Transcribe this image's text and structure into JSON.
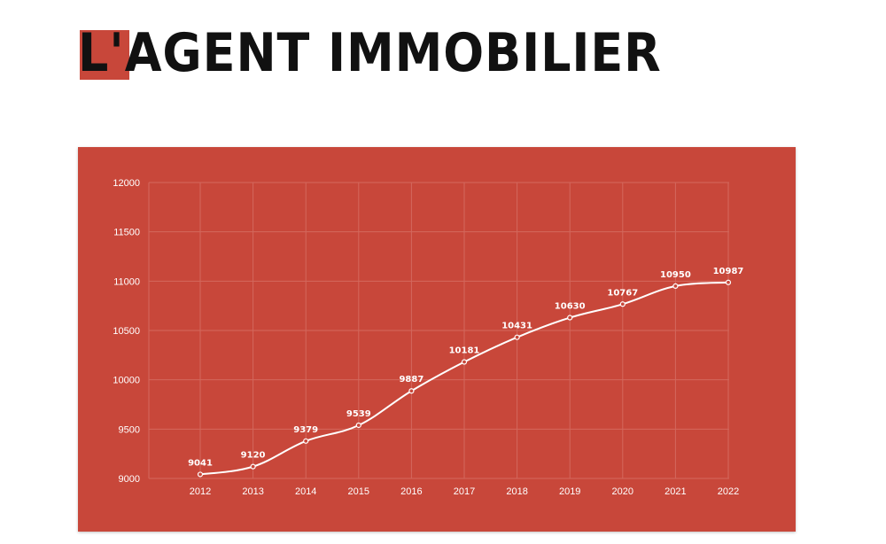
{
  "header": {
    "logo_text": "L'AGENT IMMOBILIER"
  },
  "colors": {
    "background": "#c8473a",
    "line": "#ffffff",
    "grid": "#d3685d"
  },
  "chart_data": {
    "type": "line",
    "title": "",
    "xlabel": "",
    "ylabel": "",
    "categories": [
      "2012",
      "2013",
      "2014",
      "2015",
      "2016",
      "2017",
      "2018",
      "2019",
      "2020",
      "2021",
      "2022"
    ],
    "values": [
      9041,
      9120,
      9379,
      9539,
      9887,
      10181,
      10431,
      10630,
      10767,
      10950,
      10987
    ],
    "data_labels": [
      "9041",
      "9120",
      "9379",
      "9539",
      "9887",
      "10181",
      "10431",
      "10630",
      "10767",
      "10950",
      "10987"
    ],
    "y_ticks": [
      "9000",
      "9500",
      "10000",
      "10500",
      "11000",
      "11500",
      "12000"
    ],
    "ylim": [
      9000,
      12000
    ],
    "grid": true,
    "legend": "none"
  }
}
